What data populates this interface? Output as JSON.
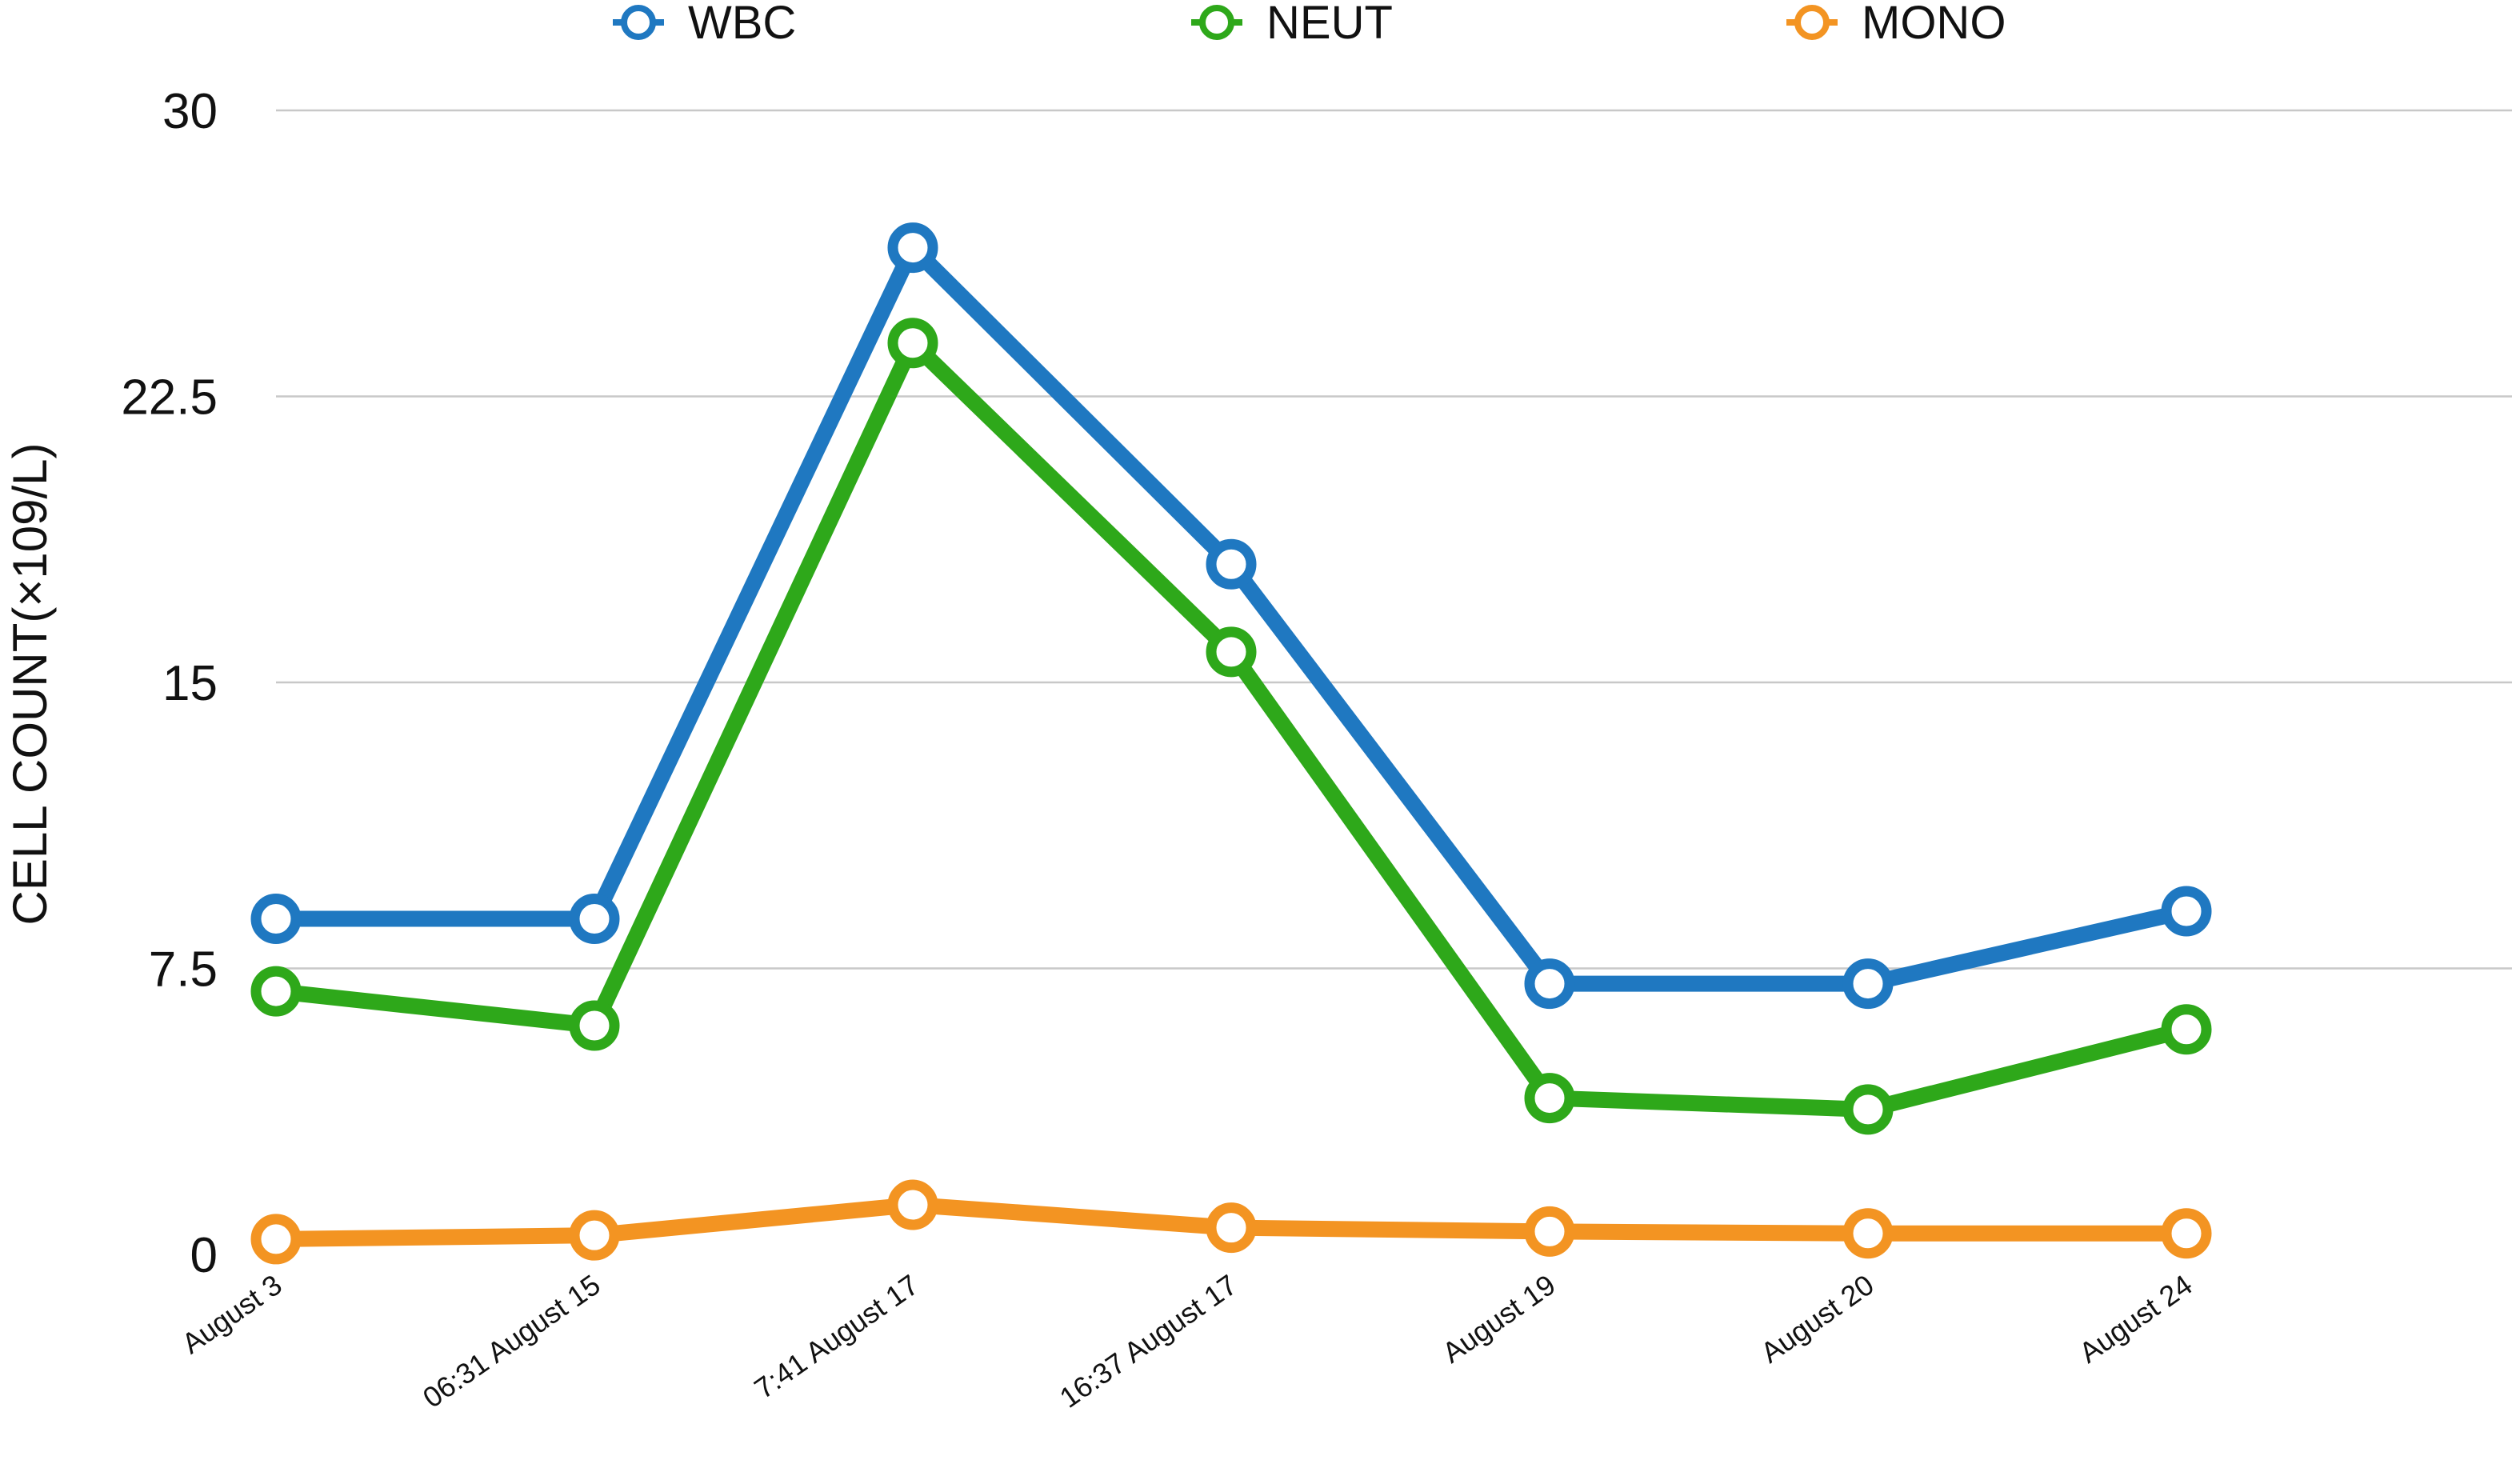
{
  "chart_data": {
    "type": "line",
    "title": "",
    "xlabel": "",
    "ylabel": "CELL COUNT(×109/L)",
    "ylim": [
      0,
      30
    ],
    "yticks": [
      0,
      7.5,
      15,
      22.5,
      30
    ],
    "ytick_labels": [
      "0",
      "7.5",
      "15",
      "22.5",
      "30"
    ],
    "grid": true,
    "legend_position": "top",
    "categories": [
      "August 3",
      "06:31 August 15",
      "7:41 August 17",
      "16:37 August 17",
      "August 19",
      "August 20",
      "August 24"
    ],
    "series": [
      {
        "name": "WBC",
        "color": "#1f78c1",
        "values": [
          8.8,
          8.8,
          26.4,
          18.1,
          7.1,
          7.1,
          9.0
        ]
      },
      {
        "name": "NEUT",
        "color": "#2ea81a",
        "values": [
          6.9,
          6.0,
          23.9,
          15.8,
          4.1,
          3.8,
          5.9
        ]
      },
      {
        "name": "MONO",
        "color": "#f39422",
        "values": [
          0.4,
          0.5,
          1.3,
          0.7,
          0.6,
          0.55,
          0.55
        ]
      }
    ]
  }
}
